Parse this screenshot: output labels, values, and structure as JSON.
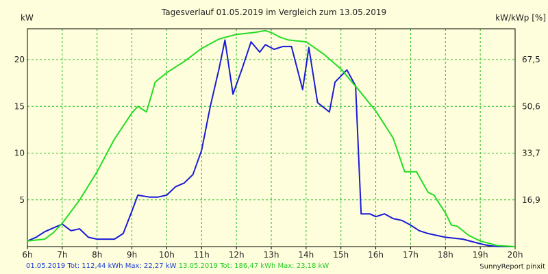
{
  "chart_data": {
    "type": "line",
    "title": "Tagesverlauf 01.05.2019 im Vergleich zum 13.05.2019",
    "ylabel_left": "kW",
    "ylabel_right": "kW/kWp [%]",
    "x_ticks": [
      "6h",
      "7h",
      "8h",
      "9h",
      "10h",
      "11h",
      "12h",
      "13h",
      "14h",
      "15h",
      "16h",
      "17h",
      "18h",
      "19h",
      "20h"
    ],
    "xlim": [
      6,
      20
    ],
    "ylim": [
      0,
      23.3
    ],
    "y_ticks_left": [
      "5",
      "10",
      "15",
      "20"
    ],
    "y_ticks_right": [
      "16,9",
      "33,7",
      "50,6",
      "67,5"
    ],
    "grid": true,
    "series": [
      {
        "name": "01.05.2019",
        "color": "#1a1ad6",
        "x": [
          6.0,
          6.25,
          6.5,
          6.75,
          7.0,
          7.25,
          7.5,
          7.75,
          8.0,
          8.25,
          8.5,
          8.75,
          9.0,
          9.17,
          9.5,
          9.75,
          10.0,
          10.25,
          10.5,
          10.75,
          11.0,
          11.25,
          11.5,
          11.67,
          11.9,
          12.17,
          12.42,
          12.67,
          12.83,
          13.08,
          13.33,
          13.58,
          13.9,
          14.08,
          14.33,
          14.67,
          14.83,
          15.17,
          15.42,
          15.58,
          15.83,
          16.0,
          16.25,
          16.5,
          16.75,
          17.0,
          17.25,
          17.5,
          18.0,
          18.5,
          19.0,
          19.25,
          19.5,
          20.0
        ],
        "y": [
          0.6,
          1.0,
          1.6,
          2.0,
          2.4,
          1.7,
          1.9,
          1.0,
          0.8,
          0.8,
          0.8,
          1.4,
          3.8,
          5.5,
          5.3,
          5.3,
          5.5,
          6.4,
          6.8,
          7.7,
          10.3,
          15.0,
          19.0,
          22.1,
          16.3,
          19.1,
          21.9,
          20.8,
          21.6,
          21.1,
          21.4,
          21.4,
          16.8,
          21.3,
          15.4,
          14.4,
          17.6,
          18.9,
          17.2,
          3.5,
          3.5,
          3.2,
          3.5,
          3.0,
          2.8,
          2.3,
          1.7,
          1.4,
          1.0,
          0.8,
          0.3,
          0.1,
          0.0,
          0.0
        ]
      },
      {
        "name": "13.05.2019",
        "color": "#22dd22",
        "x": [
          6.0,
          6.5,
          6.75,
          7.0,
          7.5,
          8.0,
          8.5,
          9.0,
          9.17,
          9.42,
          9.67,
          10.0,
          10.5,
          11.0,
          11.5,
          12.0,
          12.5,
          12.83,
          13.0,
          13.25,
          13.5,
          14.0,
          14.5,
          15.0,
          15.5,
          16.0,
          16.5,
          16.83,
          17.0,
          17.17,
          17.5,
          17.67,
          18.0,
          18.17,
          18.33,
          18.67,
          19.0,
          19.5,
          20.0
        ],
        "y": [
          0.6,
          0.8,
          1.5,
          2.5,
          5.0,
          8.0,
          11.5,
          14.3,
          15.0,
          14.4,
          17.6,
          18.6,
          19.8,
          21.2,
          22.2,
          22.7,
          22.9,
          23.1,
          22.9,
          22.4,
          22.1,
          21.9,
          20.6,
          19.0,
          16.8,
          14.5,
          11.6,
          8.0,
          8.0,
          8.0,
          5.8,
          5.5,
          3.6,
          2.3,
          2.2,
          1.2,
          0.6,
          0.1,
          0.0
        ]
      }
    ]
  },
  "footer": {
    "series1_summary": "01.05.2019 Tot: 112,44 kWh Max: 22,27 kW",
    "series2_summary": "13.05.2019 Tot: 186,47 kWh Max: 23,18 kW",
    "credit": "SunnyReport pinxit"
  },
  "colors": {
    "background": "#fefedc",
    "grid": "#22bb22",
    "axis": "#000000"
  }
}
